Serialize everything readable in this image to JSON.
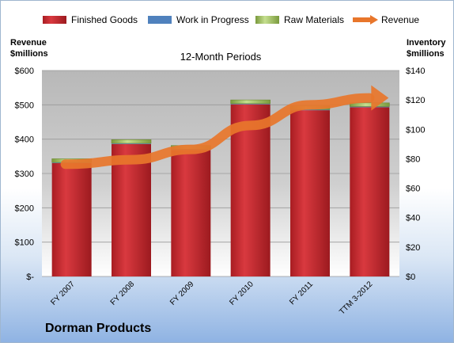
{
  "company": "Dorman Products",
  "chart_data": {
    "type": "bar",
    "title": "12-Month Periods",
    "categories": [
      "FY 2007",
      "FY 2008",
      "FY 2009",
      "FY 2010",
      "FY 2011",
      "TTM 3-2012"
    ],
    "series": [
      {
        "name": "Finished Goods",
        "axis": "right",
        "values": [
          77,
          90,
          86,
          117,
          113,
          115
        ],
        "color": "#c0272d"
      },
      {
        "name": "Work in Progress",
        "axis": "right",
        "values": [
          0.5,
          0.5,
          0.5,
          0.5,
          0.5,
          0.5
        ],
        "color": "#4f81bd"
      },
      {
        "name": "Raw Materials",
        "axis": "right",
        "values": [
          2.5,
          2.5,
          2.5,
          2.5,
          2.5,
          2.5
        ],
        "color": "#9bbb59"
      },
      {
        "name": "Revenue",
        "type": "line",
        "axis": "left",
        "values": [
          327,
          340,
          370,
          440,
          500,
          520
        ],
        "color": "#e8762b"
      }
    ],
    "left_axis": {
      "label": "Revenue $millions",
      "ticks": [
        "$-",
        "$100",
        "$200",
        "$300",
        "$400",
        "$500",
        "$600"
      ],
      "ylim": [
        0,
        600
      ]
    },
    "right_axis": {
      "label": "Inventory $millions",
      "ticks": [
        "$0",
        "$20",
        "$40",
        "$60",
        "$80",
        "$100",
        "$120",
        "$140"
      ],
      "ylim": [
        0,
        140
      ]
    },
    "legend_position": "top"
  }
}
